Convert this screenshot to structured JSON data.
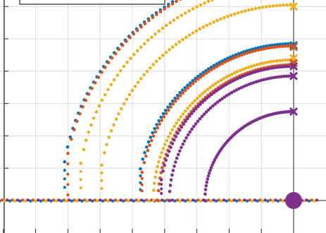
{
  "chart_data": {
    "type": "scatter",
    "title": "",
    "xlabel": "",
    "ylabel": "",
    "grid": true,
    "legend": {
      "placement": "top-left",
      "entries": []
    },
    "xlim": [
      -9.2,
      0.8
    ],
    "ylim": [
      -1.0,
      6.2
    ],
    "xgrid": [
      -9,
      -8,
      -7,
      -6,
      -5,
      -4,
      -3,
      -2,
      -1,
      0
    ],
    "ygrid": [
      0,
      1,
      2,
      3,
      4,
      5,
      6
    ],
    "colors": {
      "blue": "#0072BD",
      "orange": "#D95319",
      "yellow": "#EDB120",
      "purple": "#7E2F8E"
    },
    "series": [
      {
        "color": "#0072BD",
        "center": [
          0,
          0
        ],
        "radius": 7.2,
        "start_x": -7.1
      },
      {
        "color": "#D95319",
        "center": [
          0,
          0
        ],
        "radius": 7.15,
        "start_x": -7.0
      },
      {
        "color": "#EDB120",
        "center": [
          0,
          0
        ],
        "radius": 6.7,
        "start_x": -6.6
      },
      {
        "color": "#EDB120",
        "center": [
          0,
          0
        ],
        "radius": 6.05,
        "start_x": -5.95
      },
      {
        "color": "#0072BD",
        "center": [
          0,
          0
        ],
        "radius": 4.85,
        "start_x": -4.75
      },
      {
        "color": "#D95319",
        "center": [
          0,
          0
        ],
        "radius": 4.78,
        "start_x": -4.7
      },
      {
        "color": "#EDB120",
        "center": [
          0,
          0
        ],
        "radius": 4.35,
        "start_x": -4.5
      },
      {
        "color": "#D95319",
        "center": [
          0,
          0
        ],
        "radius": 4.2,
        "start_x": -4.3
      },
      {
        "color": "#7E2F8E",
        "center": [
          0,
          0
        ],
        "radius": 4.15,
        "start_x": -4.1
      },
      {
        "color": "#7E2F8E",
        "center": [
          0,
          0
        ],
        "radius": 3.85,
        "start_x": -4.0
      },
      {
        "color": "#7E2F8E",
        "center": [
          0,
          0
        ],
        "radius": 2.75,
        "start_x": -2.75
      }
    ],
    "endpoints": [
      {
        "x": 0,
        "y": 6.0,
        "color": "#EDB120"
      },
      {
        "x": 0,
        "y": 4.8,
        "color": "#0072BD"
      },
      {
        "x": 0,
        "y": 4.75,
        "color": "#D95319"
      },
      {
        "x": 0,
        "y": 4.4,
        "color": "#EDB120"
      },
      {
        "x": 0,
        "y": 4.25,
        "color": "#D95319"
      },
      {
        "x": 0,
        "y": 4.15,
        "color": "#7E2F8E"
      },
      {
        "x": 0,
        "y": 3.85,
        "color": "#7E2F8E"
      },
      {
        "x": 0,
        "y": 2.75,
        "color": "#7E2F8E"
      }
    ],
    "origin_marker": {
      "x": 0,
      "y": 0,
      "color": "#7E2F8E"
    },
    "real_axis_points": {
      "y": 0,
      "x_from": -9.2,
      "x_to": 0.8,
      "colors": [
        "#7E2F8E",
        "#0072BD",
        "#D95319",
        "#EDB120"
      ]
    }
  }
}
